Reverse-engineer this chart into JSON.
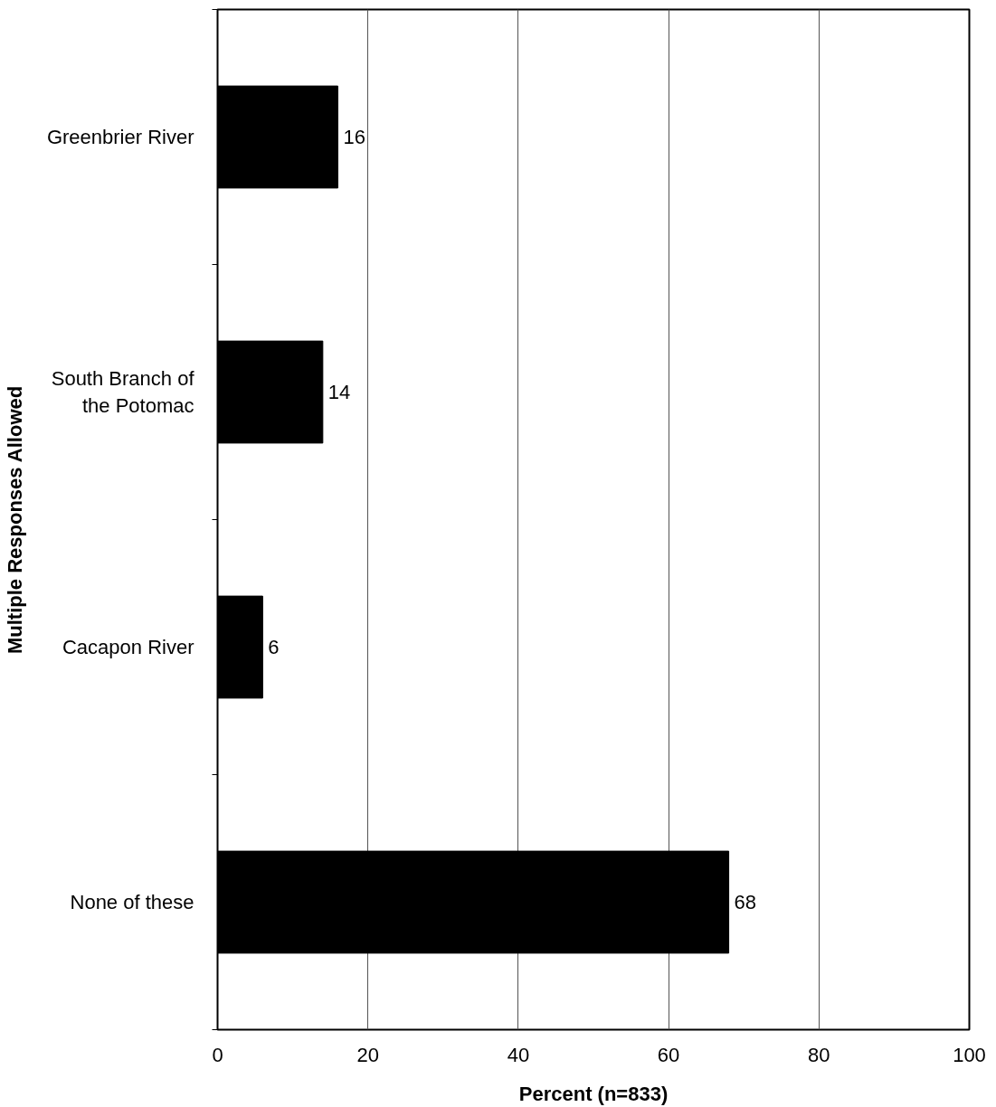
{
  "chart_data": {
    "type": "bar",
    "orientation": "horizontal",
    "categories": [
      "Greenbrier River",
      "South Branch of\nthe Potomac",
      "Cacapon River",
      "None of these"
    ],
    "values": [
      16,
      14,
      6,
      68
    ],
    "color": "#000000",
    "xlabel": "Percent (n=833)",
    "ylabel": "Multiple Responses Allowed",
    "xlim": [
      0,
      100
    ],
    "xticks": [
      0,
      20,
      40,
      60,
      80,
      100
    ],
    "grid": "x",
    "data_labels": true
  }
}
